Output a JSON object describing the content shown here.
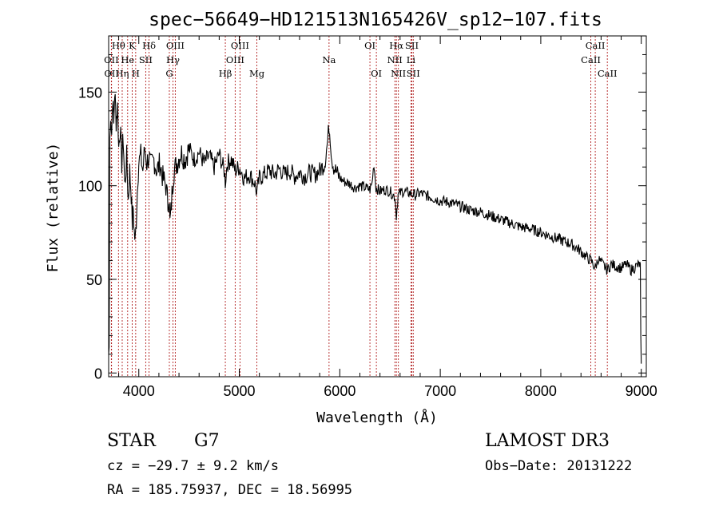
{
  "chart_data": {
    "type": "line",
    "title": "spec−56649−HD121513N165426V_sp12−107.fits",
    "xlabel": "Wavelength (Å)",
    "ylabel": "Flux (relative)",
    "xlim": [
      3700,
      9050
    ],
    "ylim": [
      -2,
      180
    ],
    "xticks": [
      4000,
      5000,
      6000,
      7000,
      8000,
      9000
    ],
    "yticks": [
      0,
      50,
      100,
      150
    ],
    "series": [
      {
        "name": "spectrum",
        "points": [
          [
            3700,
            10
          ],
          [
            3705,
            14
          ],
          [
            3712,
            125
          ],
          [
            3720,
            140
          ],
          [
            3730,
            128
          ],
          [
            3740,
            148
          ],
          [
            3750,
            132
          ],
          [
            3760,
            150
          ],
          [
            3775,
            135
          ],
          [
            3790,
            142
          ],
          [
            3800,
            120
          ],
          [
            3815,
            132
          ],
          [
            3830,
            112
          ],
          [
            3845,
            126
          ],
          [
            3860,
            100
          ],
          [
            3880,
            115
          ],
          [
            3895,
            92
          ],
          [
            3910,
            108
          ],
          [
            3925,
            96
          ],
          [
            3935,
            80
          ],
          [
            3945,
            88
          ],
          [
            3955,
            75
          ],
          [
            3965,
            70
          ],
          [
            3975,
            82
          ],
          [
            3990,
            105
          ],
          [
            4000,
            112
          ],
          [
            4020,
            116
          ],
          [
            4040,
            108
          ],
          [
            4060,
            120
          ],
          [
            4080,
            112
          ],
          [
            4100,
            116
          ],
          [
            4120,
            110
          ],
          [
            4150,
            114
          ],
          [
            4180,
            108
          ],
          [
            4210,
            112
          ],
          [
            4240,
            104
          ],
          [
            4270,
            100
          ],
          [
            4290,
            90
          ],
          [
            4300,
            95
          ],
          [
            4310,
            80
          ],
          [
            4320,
            86
          ],
          [
            4335,
            100
          ],
          [
            4350,
            108
          ],
          [
            4380,
            112
          ],
          [
            4420,
            118
          ],
          [
            4460,
            114
          ],
          [
            4500,
            120
          ],
          [
            4550,
            114
          ],
          [
            4600,
            118
          ],
          [
            4650,
            112
          ],
          [
            4700,
            116
          ],
          [
            4750,
            110
          ],
          [
            4800,
            117
          ],
          [
            4850,
            108
          ],
          [
            4861,
            102
          ],
          [
            4880,
            112
          ],
          [
            4920,
            114
          ],
          [
            4960,
            108
          ],
          [
            5000,
            110
          ],
          [
            5050,
            104
          ],
          [
            5100,
            106
          ],
          [
            5150,
            102
          ],
          [
            5175,
            96
          ],
          [
            5200,
            104
          ],
          [
            5250,
            106
          ],
          [
            5300,
            108
          ],
          [
            5350,
            106
          ],
          [
            5400,
            109
          ],
          [
            5450,
            106
          ],
          [
            5500,
            108
          ],
          [
            5550,
            105
          ],
          [
            5600,
            107
          ],
          [
            5650,
            105
          ],
          [
            5700,
            107
          ],
          [
            5750,
            106
          ],
          [
            5800,
            108
          ],
          [
            5850,
            112
          ],
          [
            5880,
            124
          ],
          [
            5893,
            132
          ],
          [
            5905,
            126
          ],
          [
            5920,
            115
          ],
          [
            5940,
            110
          ],
          [
            6000,
            104
          ],
          [
            6050,
            102
          ],
          [
            6100,
            101
          ],
          [
            6150,
            99
          ],
          [
            6200,
            100
          ],
          [
            6250,
            99
          ],
          [
            6300,
            98
          ],
          [
            6320,
            101
          ],
          [
            6340,
            112
          ],
          [
            6360,
            99
          ],
          [
            6400,
            97
          ],
          [
            6450,
            98
          ],
          [
            6500,
            97
          ],
          [
            6550,
            94
          ],
          [
            6563,
            84
          ],
          [
            6580,
            95
          ],
          [
            6620,
            97
          ],
          [
            6700,
            96
          ],
          [
            6750,
            95
          ],
          [
            6800,
            96
          ],
          [
            6900,
            94
          ],
          [
            7000,
            92
          ],
          [
            7100,
            91
          ],
          [
            7200,
            89
          ],
          [
            7300,
            87
          ],
          [
            7400,
            86
          ],
          [
            7500,
            84
          ],
          [
            7600,
            82
          ],
          [
            7700,
            80
          ],
          [
            7800,
            78
          ],
          [
            7900,
            77
          ],
          [
            8000,
            75
          ],
          [
            8100,
            73
          ],
          [
            8200,
            71
          ],
          [
            8300,
            69
          ],
          [
            8400,
            65
          ],
          [
            8450,
            62
          ],
          [
            8500,
            60
          ],
          [
            8542,
            56
          ],
          [
            8570,
            61
          ],
          [
            8600,
            59
          ],
          [
            8662,
            55
          ],
          [
            8700,
            58
          ],
          [
            8750,
            57
          ],
          [
            8800,
            56
          ],
          [
            8850,
            58
          ],
          [
            8900,
            55
          ],
          [
            8950,
            57
          ],
          [
            8980,
            58
          ],
          [
            8990,
            57
          ],
          [
            8995,
            20
          ],
          [
            9000,
            5
          ]
        ]
      }
    ],
    "lines": [
      {
        "name": "Hθ",
        "wavelength": 3798,
        "row": 0
      },
      {
        "name": "OII",
        "wavelength": 3727,
        "row": 1
      },
      {
        "name": "OII",
        "wavelength": 3729,
        "row": 2
      },
      {
        "name": "Hη",
        "wavelength": 3835,
        "row": 2
      },
      {
        "name": "He",
        "wavelength": 3889,
        "row": 1
      },
      {
        "name": "K",
        "wavelength": 3934,
        "row": 0
      },
      {
        "name": "H",
        "wavelength": 3969,
        "row": 2
      },
      {
        "name": "SII",
        "wavelength": 4069,
        "row": 1
      },
      {
        "name": "Hδ",
        "wavelength": 4102,
        "row": 0
      },
      {
        "name": "OIII",
        "wavelength": 4363,
        "row": 0
      },
      {
        "name": "Hγ",
        "wavelength": 4340,
        "row": 1
      },
      {
        "name": "G",
        "wavelength": 4304,
        "row": 2
      },
      {
        "name": "Hβ",
        "wavelength": 4861,
        "row": 2
      },
      {
        "name": "OIII",
        "wavelength": 4959,
        "row": 1
      },
      {
        "name": "OIII",
        "wavelength": 5007,
        "row": 0
      },
      {
        "name": "Mg",
        "wavelength": 5175,
        "row": 2
      },
      {
        "name": "Na",
        "wavelength": 5893,
        "row": 1
      },
      {
        "name": "OI",
        "wavelength": 6300,
        "row": 0
      },
      {
        "name": "OI",
        "wavelength": 6364,
        "row": 2
      },
      {
        "name": "NII",
        "wavelength": 6548,
        "row": 1
      },
      {
        "name": "Hα",
        "wavelength": 6563,
        "row": 0
      },
      {
        "name": "NII",
        "wavelength": 6583,
        "row": 2
      },
      {
        "name": "Li",
        "wavelength": 6708,
        "row": 1
      },
      {
        "name": "SII",
        "wavelength": 6717,
        "row": 0
      },
      {
        "name": "SII",
        "wavelength": 6731,
        "row": 2
      },
      {
        "name": "CaII",
        "wavelength": 8498,
        "row": 1
      },
      {
        "name": "CaII",
        "wavelength": 8542,
        "row": 0
      },
      {
        "name": "CaII",
        "wavelength": 8662,
        "row": 2
      }
    ],
    "line_color": "#b22222",
    "grid": false
  },
  "info": {
    "class": "STAR",
    "subclass": "G7",
    "cz": "cz = −29.7 ± 9.2 km/s",
    "radec": "RA = 185.75937, DEC =  18.56995",
    "survey": "LAMOST DR3",
    "obsdate": "Obs−Date: 20131222"
  }
}
